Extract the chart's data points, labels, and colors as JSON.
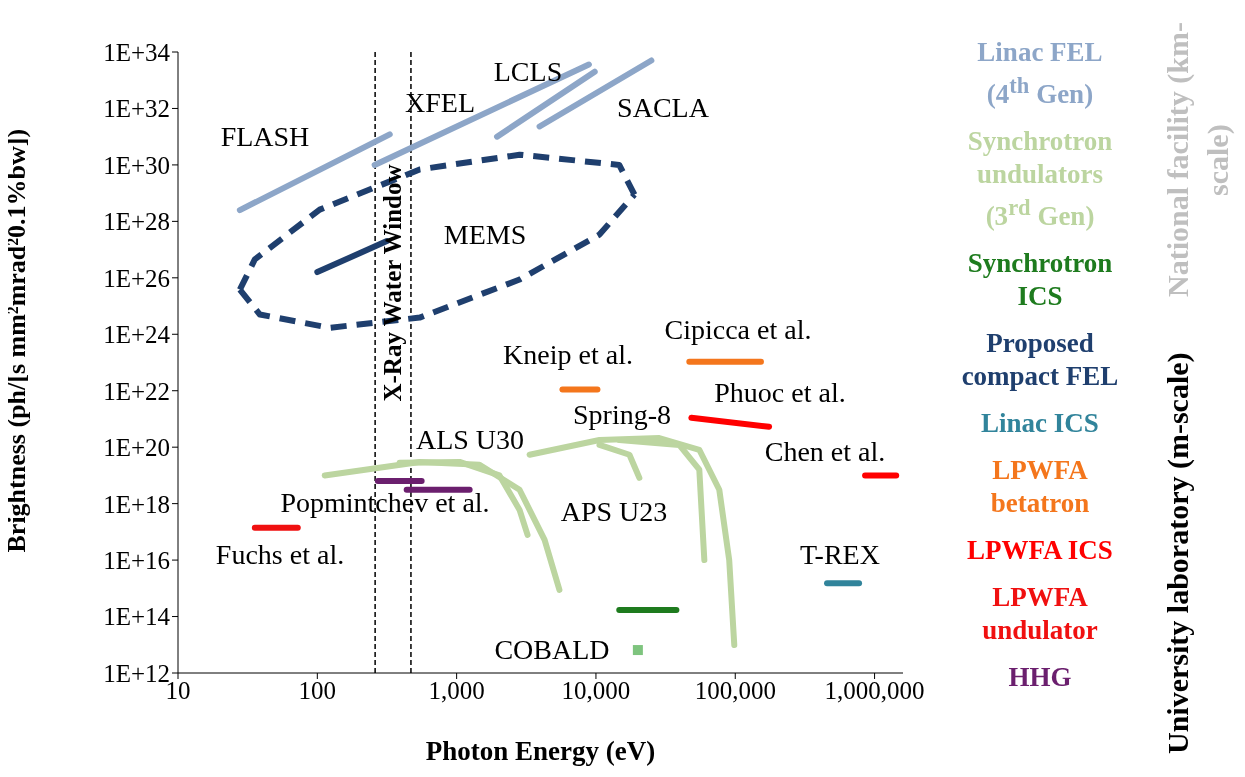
{
  "chart_data": {
    "type": "line",
    "xlabel": "Photon Energy (eV)",
    "ylabel": "Brightness (ph/[s mm²mrad²0.1%bw])",
    "log": "xy",
    "legend": "right",
    "marker": "none",
    "line_style": "solid",
    "xlim": [
      10,
      1600000
    ],
    "xticks": [
      10,
      100,
      {
        "value": 1000,
        "label": "1,000"
      },
      {
        "value": 10000,
        "label": "10,000"
      },
      {
        "value": 100000,
        "label": "100,000"
      },
      {
        "value": 1000000,
        "label": "1,000,000"
      }
    ],
    "ylim": [
      1000000000000.0,
      1e+34
    ],
    "yticks": [
      {
        "value": 1000000000000.0,
        "label": "1E+12"
      },
      {
        "value": 100000000000000.0,
        "label": "1E+14"
      },
      {
        "value": 1e+16,
        "label": "1E+16"
      },
      {
        "value": 1e+18,
        "label": "1E+18"
      },
      {
        "value": 1e+20,
        "label": "1E+20"
      },
      {
        "value": 1e+22,
        "label": "1E+22"
      },
      {
        "value": 1e+24,
        "label": "1E+24"
      },
      {
        "value": 1e+26,
        "label": "1E+26"
      },
      {
        "value": 1e+28,
        "label": "1E+28"
      },
      {
        "value": 1e+30,
        "label": "1E+30"
      },
      {
        "value": 1e+32,
        "label": "1E+32"
      },
      {
        "value": 1e+34,
        "label": "1E+34"
      }
    ],
    "series": [
      {
        "name": "Linac FEL (4$^{th}$ Gen)",
        "color": "#8da6c8",
        "x": [
          27.8,
          331
        ],
        "values": [
          2.5e+28,
          1.2e+31
        ]
      },
      {
        "color": "#8da6c8",
        "x": [
          258,
          8900
        ],
        "values": [
          1e+30,
          3.6e+33
        ]
      },
      {
        "color": "#8da6c8",
        "x": [
          1950,
          9800
        ],
        "values": [
          1e+31,
          2e+33
        ]
      },
      {
        "color": "#8da6c8",
        "x": [
          3940,
          25000
        ],
        "values": [
          2.3e+31,
          5e+33
        ]
      },
      {
        "name": "Synchrotron undulators (3$^{rd}$ Gen)",
        "color": "#bcd5a0",
        "x": [
          113,
          543,
          1460,
          2830,
          4280,
          5470
        ],
        "values": [
          1e+19,
          3e+19,
          2.4e+19,
          3.1e+18,
          5.2e+16,
          880000000000000.0
        ]
      },
      {
        "color": "#bcd5a0",
        "x": [
          390,
          1050,
          2030,
          2830,
          3230
        ],
        "values": [
          2.8e+19,
          3e+19,
          1e+19,
          6e+17,
          7.8e+16
        ]
      },
      {
        "color": "#bcd5a0",
        "x": [
          3340,
          10600,
          28500,
          55200,
          76800,
          90500,
          98400
        ],
        "values": [
          5.4e+19,
          1.8e+20,
          2.1e+20,
          8.1e+19,
          3.1e+18,
          1e+16,
          9800000000000.0
        ]
      },
      {
        "color": "#bcd5a0",
        "x": [
          14700,
          39600,
          55200,
          60000
        ],
        "values": [
          1.8e+20,
          1.2e+20,
          1.6e+19,
          1e+16
        ]
      },
      {
        "color": "#bcd5a0",
        "x": [
          10600,
          17400,
          20500
        ],
        "values": [
          1.2e+20,
          5.4e+19,
          8.2e+18
        ]
      },
      {
        "name": "Synchrotron ICS",
        "color": "#1e7b1e",
        "x": [
          14700,
          37800
        ],
        "values": [
          170000000000000.0,
          170000000000000.0
        ]
      },
      {
        "name": "Proposed compact FEL",
        "color": "#1f3f6e",
        "x": [
          100,
          316
        ],
        "values": [
          1.6e+26,
          2e+27
        ]
      },
      {
        "color": "#1f3f6e",
        "line_style": "dashed",
        "x": [
          27.8,
          38.7,
          123,
          543,
          2830,
          10600,
          18900
        ],
        "values": [
          3.8e+25,
          5e+24,
          1.7e+24,
          3.9e+24,
          8.7e+25,
          3.4e+27,
          8.9e+28
        ]
      },
      {
        "color": "#1f3f6e",
        "line_style": "dashed",
        "x": [
          27.8,
          35.6,
          104,
          543,
          2830,
          14700,
          18900
        ],
        "values": [
          3.8e+25,
          4.5e+26,
          2.6e+28,
          6.9e+29,
          2.3e+30,
          1e+30,
          8.9e+28
        ]
      },
      {
        "name": "Linac ICS",
        "color": "#31849b",
        "x": [
          456000,
          774000
        ],
        "values": [
          1500000000000000.0,
          1500000000000000.0
        ]
      },
      {
        "name": "LPWFA betatron",
        "color": "#f4761c",
        "x": [
          5750,
          10250
        ],
        "values": [
          1.1e+22,
          1.1e+22
        ]
      },
      {
        "color": "#f4761c",
        "x": [
          46800,
          153000
        ],
        "values": [
          1.07e+23,
          1.07e+23
        ]
      },
      {
        "name": "LPWFA ICS",
        "color": "#ff0000",
        "x": [
          48400,
          175000
        ],
        "values": [
          1.1e+21,
          5.3e+20
        ]
      },
      {
        "color": "#ff0000",
        "x": [
          855000,
          1430000
        ],
        "values": [
          1e+19,
          1e+19
        ]
      },
      {
        "name": "LPWFA undulator",
        "color": "#f01010",
        "x": [
          35.6,
          72.4
        ],
        "values": [
          1.4e+17,
          1.4e+17
        ]
      },
      {
        "name": "HHG",
        "color": "#6b1f6e",
        "x": [
          272,
          561
        ],
        "values": [
          6.4e+18,
          6.4e+18
        ]
      },
      {
        "color": "#6b1f6e",
        "x": [
          438,
          1240
        ],
        "values": [
          3.1e+18,
          3.1e+18
        ]
      },
      {
        "type": "scatter",
        "marker": "square",
        "color": "#7ec47e",
        "x": [
          20000
        ],
        "values": [
          6500000000000.0
        ]
      }
    ],
    "ref_lines": [
      {
        "axis": "x",
        "value": 260,
        "line_style": "dashed"
      },
      {
        "axis": "x",
        "value": 470,
        "line_style": "dashed"
      }
    ],
    "annotations": [
      "FLASH",
      "XFEL",
      "LCLS",
      "SACLA",
      "MEMS",
      "Kneip et al.",
      "Cipicca et al.",
      "Phuoc et al.",
      "Spring-8",
      "Chen et al.",
      "ALS U30",
      "Popmintchev et al.",
      "APS U23",
      "Fuchs et al.",
      "T-REX",
      "COBALD",
      "X-Ray Water Window",
      "National facility (km-scale)",
      "University laboratory (m-scale)"
    ]
  }
}
